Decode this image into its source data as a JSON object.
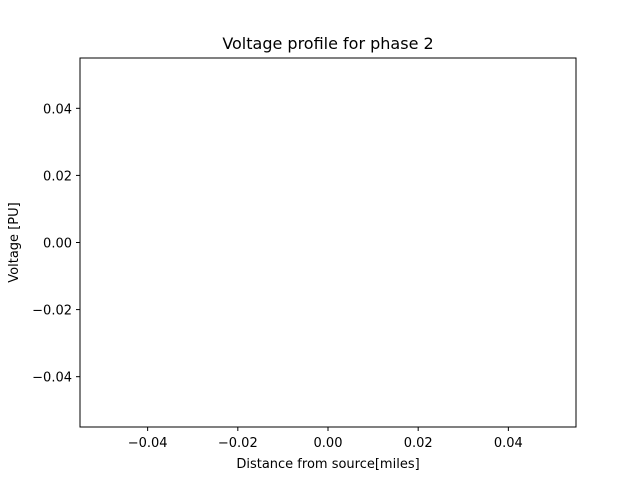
{
  "chart_data": {
    "type": "line",
    "title": "Voltage profile for phase 2",
    "xlabel": "Distance from source[miles]",
    "ylabel": "Voltage [PU]",
    "xlim": [
      -0.055,
      0.055
    ],
    "ylim": [
      -0.055,
      0.055
    ],
    "x_ticks": [
      -0.04,
      -0.02,
      0.0,
      0.02,
      0.04
    ],
    "x_tick_labels": [
      "−0.04",
      "−0.02",
      "0.00",
      "0.02",
      "0.04"
    ],
    "y_ticks": [
      -0.04,
      -0.02,
      0.0,
      0.02,
      0.04
    ],
    "y_tick_labels": [
      "−0.04",
      "−0.02",
      "0.00",
      "0.02",
      "0.04"
    ],
    "series": [],
    "grid": false,
    "legend": "none"
  }
}
